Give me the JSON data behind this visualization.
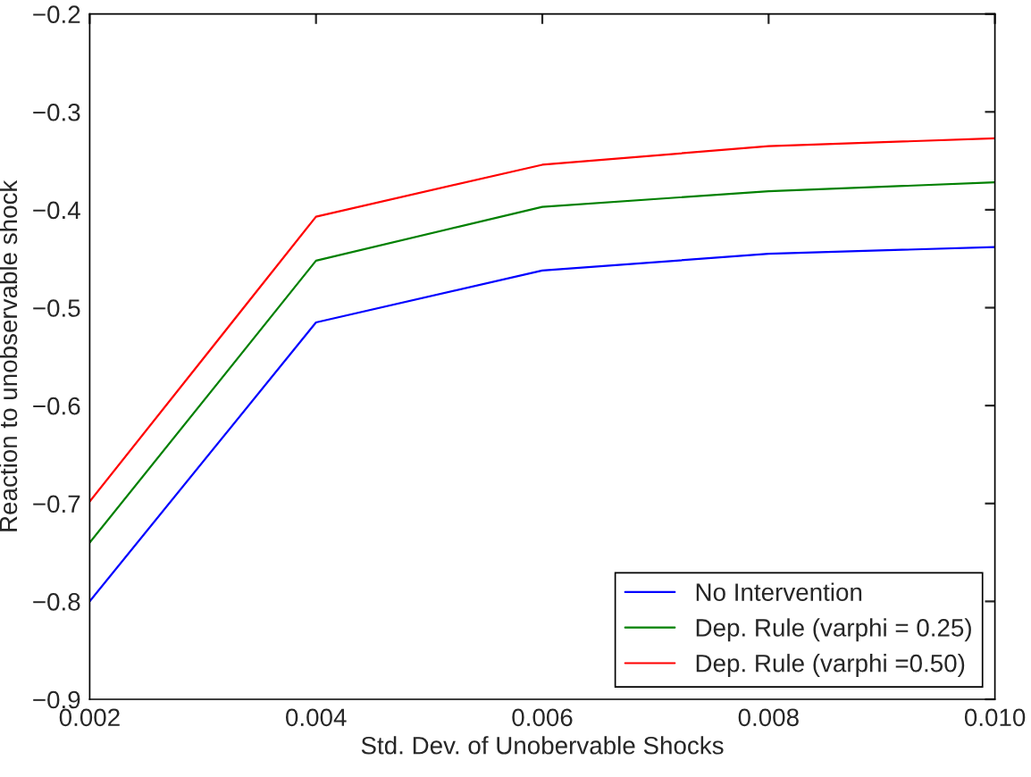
{
  "chart_data": {
    "type": "line",
    "xlabel": "Std. Dev. of Unobervable Shocks",
    "ylabel": "Reaction to unobservable shock",
    "x": [
      0.002,
      0.004,
      0.006,
      0.008,
      0.01
    ],
    "series": [
      {
        "name": "No Intervention",
        "color": "#0000ff",
        "values": [
          -0.8,
          -0.515,
          -0.462,
          -0.445,
          -0.438
        ]
      },
      {
        "name": "Dep. Rule (varphi = 0.25)",
        "color": "#008000",
        "values": [
          -0.74,
          -0.452,
          -0.397,
          -0.381,
          -0.372
        ]
      },
      {
        "name": "Dep. Rule (varphi =0.50)",
        "color": "#ff0000",
        "values": [
          -0.698,
          -0.407,
          -0.354,
          -0.335,
          -0.327
        ]
      }
    ],
    "xlim": [
      0.002,
      0.01
    ],
    "xticks": [
      {
        "value": 0.002,
        "label": "0.002"
      },
      {
        "value": 0.004,
        "label": "0.004"
      },
      {
        "value": 0.006,
        "label": "0.006"
      },
      {
        "value": 0.008,
        "label": "0.008"
      },
      {
        "value": 0.01,
        "label": "0.010"
      }
    ],
    "ylim": [
      -0.9,
      -0.2
    ],
    "yticks": [
      {
        "value": -0.9,
        "label": "−0.9"
      },
      {
        "value": -0.8,
        "label": "−0.8"
      },
      {
        "value": -0.7,
        "label": "−0.7"
      },
      {
        "value": -0.6,
        "label": "−0.6"
      },
      {
        "value": -0.5,
        "label": "−0.5"
      },
      {
        "value": -0.4,
        "label": "−0.4"
      },
      {
        "value": -0.3,
        "label": "−0.3"
      },
      {
        "value": -0.2,
        "label": "−0.2"
      }
    ],
    "grid": false,
    "legend": "bottom right",
    "marker": "none",
    "line_style": "solid"
  }
}
